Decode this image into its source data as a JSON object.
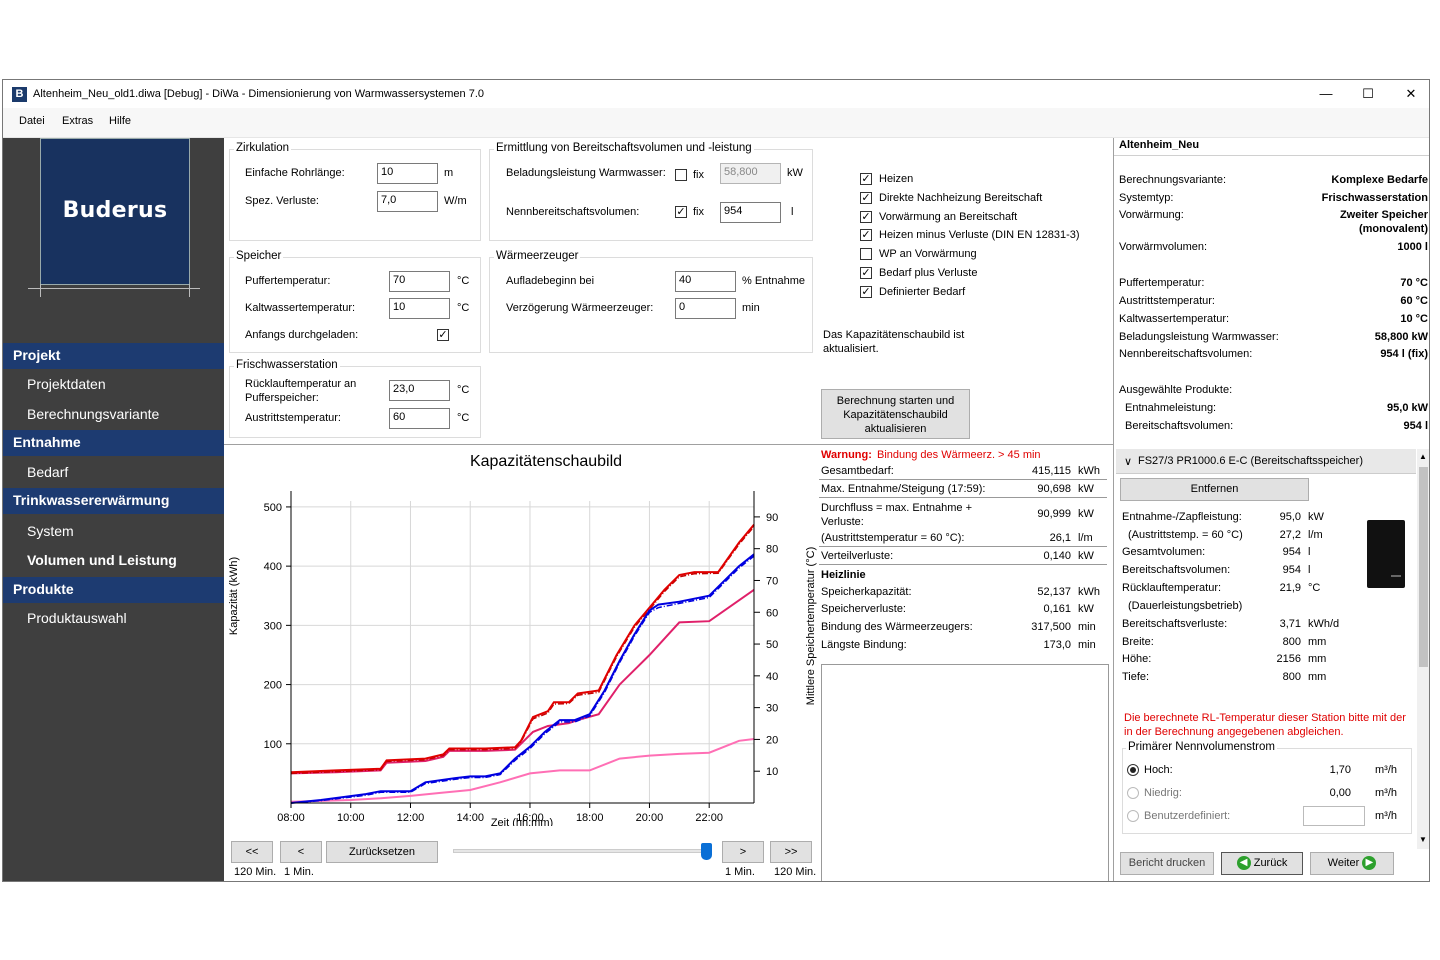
{
  "window": {
    "title": "Altenheim_Neu_old1.diwa [Debug] - DiWa - Dimensionierung von Warmwassersystemen 7.0",
    "app_icon": "B",
    "minimize": "—",
    "maximize": "☐",
    "close": "✕"
  },
  "menu": [
    "Datei",
    "Extras",
    "Hilfe"
  ],
  "sidebar": {
    "logo": "Buderus",
    "sections": [
      {
        "label": "Projekt",
        "items": [
          "Projektdaten",
          "Berechnungsvariante"
        ]
      },
      {
        "label": "Entnahme",
        "items": [
          "Bedarf"
        ]
      },
      {
        "label": "Trinkwassererwärmung",
        "items": [
          "System",
          "Volumen und Leistung"
        ]
      },
      {
        "label": "Produkte",
        "items": [
          "Produktauswahl"
        ]
      }
    ],
    "active_item": "Volumen und Leistung"
  },
  "zirkulation": {
    "title": "Zirkulation",
    "rohrlaenge_label": "Einfache Rohrlänge:",
    "rohrlaenge": "10",
    "rohrlaenge_unit": "m",
    "verluste_label": "Spez. Verluste:",
    "verluste": "7,0",
    "verluste_unit": "W/m"
  },
  "speicher": {
    "title": "Speicher",
    "puffer_label": "Puffertemperatur:",
    "puffer": "70",
    "puffer_unit": "°C",
    "kalt_label": "Kaltwassertemperatur:",
    "kalt": "10",
    "kalt_unit": "°C",
    "anfang_label": "Anfangs durchgeladen:",
    "anfang_checked": "✓"
  },
  "frischwasser": {
    "title": "Frischwasserstation",
    "ruecklauf_label": "Rücklauftemperatur an Pufferspeicher:",
    "ruecklauf": "23,0",
    "ruecklauf_unit": "°C",
    "austritt_label": "Austrittstemperatur:",
    "austritt": "60",
    "austritt_unit": "°C"
  },
  "bereitschaft": {
    "title": "Ermittlung von Bereitschaftsvolumen und -leistung",
    "leistung_label": "Beladungsleistung Warmwasser:",
    "leistung_fix": "fix",
    "leistung": "58,800",
    "leistung_unit": "kW",
    "volumen_label": "Nennbereitschaftsvolumen:",
    "volumen_fix": "fix",
    "volumen_checked": "✓",
    "volumen": "954",
    "volumen_unit": "l"
  },
  "waermeerzeuger": {
    "title": "Wärmeerzeuger",
    "aufladebeginn_label": "Aufladebeginn bei",
    "aufladebeginn": "40",
    "aufladebeginn_unit": "% Entnahme",
    "verzoegerung_label": "Verzögerung Wärmeerzeuger:",
    "verzoegerung": "0",
    "verzoegerung_unit": "min"
  },
  "status_text": "Das Kapazitätenschaubild ist aktualisiert.",
  "calc_button": "Berechnung starten und Kapazitätenschaubild aktualisieren",
  "chart_data": {
    "type": "line",
    "title": "Kapazitätenschaubild",
    "xlabel": "Zeit (hh:mm)",
    "ylabel": "Kapazität (kWh)",
    "y2label": "Mittlere Speichertemperatur (°C)",
    "x_ticks": [
      "08:00",
      "10:00",
      "12:00",
      "14:00",
      "16:00",
      "18:00",
      "20:00",
      "22:00"
    ],
    "xlim": [
      8,
      23.5
    ],
    "ylim": [
      0,
      510
    ],
    "y_ticks": [
      100,
      200,
      300,
      400,
      500
    ],
    "y2lim": [
      0,
      95
    ],
    "y2_ticks": [
      10,
      20,
      30,
      40,
      50,
      60,
      70,
      80,
      90
    ],
    "grid": true,
    "series": [
      {
        "name": "Heizen",
        "color": "#e00000",
        "style": "solid",
        "x": [
          8,
          9.5,
          11,
          11.2,
          12.5,
          13.1,
          13.3,
          14.5,
          15.5,
          15.7,
          16.1,
          16.6,
          16.8,
          17.3,
          17.6,
          18.3,
          18.9,
          19.5,
          20.0,
          20.5,
          21.0,
          21.5,
          22.3,
          23.0,
          23.5
        ],
        "y": [
          52,
          55,
          58,
          72,
          75,
          82,
          92,
          92,
          94,
          105,
          145,
          155,
          170,
          170,
          185,
          190,
          250,
          300,
          330,
          360,
          385,
          390,
          390,
          440,
          470
        ]
      },
      {
        "name": "Direkte Nachheizung Bereitschaft",
        "color": "#e0206a",
        "style": "solid",
        "x": [
          8,
          9.5,
          11,
          11.2,
          12.5,
          13.1,
          13.3,
          14.5,
          15.5,
          16.1,
          16.6,
          17.3,
          17.6,
          18.3,
          19.0,
          20.0,
          21.0,
          22.0,
          23.5
        ],
        "y": [
          50,
          52,
          55,
          68,
          71,
          78,
          88,
          88,
          90,
          120,
          130,
          135,
          140,
          150,
          200,
          250,
          305,
          307,
          360
        ]
      },
      {
        "name": "Vorwärmung an Bereitschaft",
        "color": "#ff6fb5",
        "style": "solid",
        "x": [
          8,
          10,
          11,
          12,
          13,
          14,
          15,
          16,
          17,
          18,
          19,
          20,
          21,
          22,
          23,
          23.5
        ],
        "y": [
          2,
          5,
          8,
          12,
          17,
          22,
          35,
          50,
          55,
          55,
          75,
          80,
          83,
          85,
          105,
          108
        ]
      },
      {
        "name": "Heizen minus Verluste (DIN EN 12831-3)",
        "color": "#c00000",
        "style": "dashdot",
        "x": [
          8,
          9.5,
          11,
          11.2,
          12.5,
          13.1,
          13.3,
          14.5,
          15.5,
          15.7,
          16.1,
          16.6,
          16.8,
          17.3,
          17.6,
          18.3,
          18.9,
          19.5,
          20.0,
          20.5,
          21.0,
          21.5,
          22.3,
          23.0,
          23.5
        ],
        "y": [
          50,
          53,
          56,
          70,
          73,
          80,
          90,
          90,
          92,
          103,
          142,
          152,
          167,
          168,
          182,
          187,
          247,
          297,
          327,
          357,
          382,
          387,
          388,
          437,
          467
        ]
      },
      {
        "name": "WP an Vorwärmung",
        "color": "#ff00ff",
        "style": "solid",
        "x": [],
        "y": []
      },
      {
        "name": "Bedarf plus Verluste",
        "color": "#0000e0",
        "style": "solid",
        "x": [
          8,
          9.0,
          10.5,
          11.0,
          12.0,
          12.5,
          13.5,
          14.0,
          14.5,
          15.0,
          15.5,
          16.0,
          16.5,
          17.0,
          17.5,
          18.0,
          18.5,
          19.0,
          19.5,
          20.0,
          20.3,
          21.0,
          22.0,
          23.0,
          23.5
        ],
        "y": [
          0,
          5,
          15,
          20,
          20,
          35,
          42,
          45,
          45,
          50,
          75,
          95,
          120,
          140,
          140,
          150,
          190,
          240,
          285,
          325,
          335,
          340,
          350,
          400,
          420
        ]
      },
      {
        "name": "Definierter Bedarf",
        "color": "#0000e0",
        "style": "dashdot",
        "x": [
          8,
          9.0,
          10.5,
          11.0,
          12.0,
          12.5,
          13.5,
          14.0,
          14.5,
          15.0,
          15.5,
          16.0,
          16.5,
          17.0,
          17.5,
          18.0,
          18.5,
          19.0,
          19.5,
          20.0,
          20.3,
          21.0,
          22.0,
          23.0,
          23.5
        ],
        "y": [
          0,
          4,
          13,
          18,
          18,
          33,
          40,
          43,
          43,
          48,
          72,
          92,
          117,
          137,
          137,
          147,
          187,
          237,
          282,
          322,
          330,
          337,
          347,
          397,
          417
        ]
      }
    ]
  },
  "legend_checked": [
    true,
    true,
    true,
    true,
    false,
    true,
    true
  ],
  "results": {
    "warnung_label": "Warnung:",
    "warnung_text": "Bindung des Wärmeerz. > 45 min",
    "rows": [
      {
        "label": "Gesamtbedarf:",
        "value": "415,115",
        "unit": "kWh"
      },
      {
        "label": "Max. Entnahme/Steigung (17:59):",
        "value": "90,698",
        "unit": "kW"
      },
      {
        "label": "Durchfluss = max. Entnahme + Verluste:",
        "value": "90,999",
        "unit": "kW"
      },
      {
        "label": "(Austrittstemperatur = 60 °C):",
        "value": "26,1",
        "unit": "l/m"
      },
      {
        "label": "Verteilverluste:",
        "value": "0,140",
        "unit": "kW"
      }
    ],
    "heizlinie_title": "Heizlinie",
    "heizlinie": [
      {
        "label": "Speicherkapazität:",
        "value": "52,137",
        "unit": "kWh"
      },
      {
        "label": "Speicherverluste:",
        "value": "0,161",
        "unit": "kW"
      },
      {
        "label": "Bindung des Wärmeerzeugers:",
        "value": "317,500",
        "unit": "min"
      },
      {
        "label": "Längste Bindung:",
        "value": "173,0",
        "unit": "min"
      }
    ]
  },
  "controls": {
    "first": "<<",
    "prev": "<",
    "reset": "Zurücksetzen",
    "next": ">",
    "last": ">>",
    "first_sub": "120 Min.",
    "prev_sub": "1 Min.",
    "next_sub": "1 Min.",
    "last_sub": "120 Min.",
    "slider_position": 1.0
  },
  "summary": {
    "project": "Altenheim_Neu",
    "rows1": [
      {
        "label": "Berechnungsvariante:",
        "value": "Komplexe Bedarfe"
      },
      {
        "label": "Systemtyp:",
        "value": "Frischwasserstation"
      },
      {
        "label": "Vorwärmung:",
        "value": "Zweiter Speicher"
      },
      {
        "label": "",
        "value": "(monovalent)"
      },
      {
        "label": "Vorwärmvolumen:",
        "value": "1000 l"
      }
    ],
    "rows2": [
      {
        "label": "Puffertemperatur:",
        "value": "70 °C"
      },
      {
        "label": "Austrittstemperatur:",
        "value": "60 °C"
      },
      {
        "label": "Kaltwassertemperatur:",
        "value": "10 °C"
      },
      {
        "label": "Beladungsleistung Warmwasser:",
        "value": "58,800 kW"
      },
      {
        "label": "Nennbereitschaftsvolumen:",
        "value": "954 l (fix)"
      }
    ],
    "products_title": "Ausgewählte Produkte:",
    "rows3": [
      {
        "label": "Entnahmeleistung:",
        "value": "95,0 kW"
      },
      {
        "label": "Bereitschaftsvolumen:",
        "value": "954 l"
      }
    ]
  },
  "product": {
    "name": "FS27/3 PR1000.6 E-C (Bereitschaftsspeicher)",
    "chevron": "∨",
    "remove": "Entfernen",
    "rows": [
      {
        "label": "Entnahme-/Zapfleistung:",
        "value": "95,0",
        "unit": "kW"
      },
      {
        "label": "(Austrittstemp. = 60 °C)",
        "value": "27,2",
        "unit": "l/m"
      },
      {
        "label": "Gesamtvolumen:",
        "value": "954",
        "unit": "l"
      },
      {
        "label": "Bereitschaftsvolumen:",
        "value": "954",
        "unit": "l"
      },
      {
        "label": "Rücklauftemperatur:",
        "value": "21,9",
        "unit": "°C"
      },
      {
        "label": "(Dauerleistungsbetrieb)",
        "value": "",
        "unit": ""
      },
      {
        "label": "Bereitschaftsverluste:",
        "value": "3,71",
        "unit": "kWh/d"
      },
      {
        "label": "Breite:",
        "value": "800",
        "unit": "mm"
      },
      {
        "label": "Höhe:",
        "value": "2156",
        "unit": "mm"
      },
      {
        "label": "Tiefe:",
        "value": "800",
        "unit": "mm"
      }
    ],
    "warning": "Die berechnete RL-Temperatur dieser Station bitte mit der in der Berechnung angegebenen abgleichen.",
    "flow_title": "Primärer Nennvolumenstrom",
    "flow": [
      {
        "label": "Hoch:",
        "value": "1,70",
        "unit": "m³/h",
        "selected": true
      },
      {
        "label": "Niedrig:",
        "value": "0,00",
        "unit": "m³/h",
        "selected": false
      },
      {
        "label": "Benutzerdefiniert:",
        "value": "",
        "unit": "m³/h",
        "selected": false
      }
    ]
  },
  "footer": {
    "print": "Bericht drucken",
    "back": "Zurück",
    "next": "Weiter"
  },
  "colors": {
    "nav_head": "#1d3b71",
    "sidebar": "#3f3f3f",
    "warning": "#e00000",
    "logo_bg": "#18325f"
  }
}
